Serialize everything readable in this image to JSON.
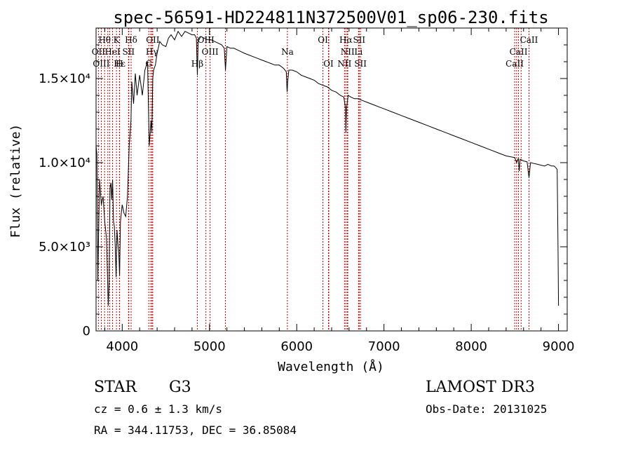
{
  "chart_data": {
    "type": "line",
    "title": "spec-56591-HD224811N372500V01_sp06-230.fits",
    "xlabel": "Wavelength (Å)",
    "ylabel": "Flux (relative)",
    "xlim": [
      3700,
      9100
    ],
    "ylim": [
      0,
      18000
    ],
    "x_ticks": [
      {
        "value": 4000,
        "label": "4000"
      },
      {
        "value": 5000,
        "label": "5000"
      },
      {
        "value": 6000,
        "label": "6000"
      },
      {
        "value": 7000,
        "label": "7000"
      },
      {
        "value": 8000,
        "label": "8000"
      },
      {
        "value": 9000,
        "label": "9000"
      }
    ],
    "y_ticks": [
      {
        "value": 0,
        "label": "0"
      },
      {
        "value": 5000,
        "label": "5.0×10³"
      },
      {
        "value": 10000,
        "label": "1.0×10⁴"
      },
      {
        "value": 15000,
        "label": "1.5×10⁴"
      }
    ],
    "series": [
      {
        "name": "spectrum",
        "x": [
          3700,
          3710,
          3720,
          3730,
          3740,
          3760,
          3780,
          3800,
          3820,
          3840,
          3850,
          3860,
          3870,
          3880,
          3890,
          3900,
          3910,
          3920,
          3930,
          3940,
          3950,
          3960,
          3970,
          3980,
          4000,
          4020,
          4040,
          4060,
          4080,
          4100,
          4110,
          4130,
          4150,
          4170,
          4200,
          4230,
          4260,
          4290,
          4310,
          4330,
          4340,
          4350,
          4360,
          4380,
          4400,
          4430,
          4460,
          4500,
          4530,
          4560,
          4600,
          4640,
          4680,
          4720,
          4760,
          4800,
          4830,
          4850,
          4861,
          4870,
          4900,
          4940,
          4980,
          5020,
          5060,
          5100,
          5140,
          5170,
          5183,
          5200,
          5240,
          5280,
          5320,
          5360,
          5400,
          5450,
          5500,
          5550,
          5600,
          5650,
          5700,
          5750,
          5800,
          5850,
          5880,
          5890,
          5896,
          5910,
          5950,
          6000,
          6050,
          6100,
          6150,
          6200,
          6250,
          6300,
          6350,
          6400,
          6450,
          6500,
          6540,
          6560,
          6563,
          6570,
          6590,
          6620,
          6660,
          6700,
          6750,
          6800,
          6850,
          6900,
          6950,
          7000,
          7100,
          7200,
          7300,
          7400,
          7500,
          7600,
          7700,
          7800,
          7900,
          8000,
          8100,
          8200,
          8300,
          8400,
          8450,
          8500,
          8520,
          8540,
          8550,
          8560,
          8600,
          8640,
          8662,
          8680,
          8720,
          8760,
          8800,
          8840,
          8880,
          8920,
          8950,
          8970,
          8985,
          8995,
          9000
        ],
        "y": [
          11000,
          10500,
          3000,
          6000,
          9000,
          7500,
          8000,
          6500,
          5500,
          1500,
          3000,
          8500,
          8800,
          7800,
          9000,
          6500,
          6200,
          5000,
          3200,
          6000,
          5200,
          4700,
          3300,
          6500,
          7500,
          7000,
          6800,
          8000,
          11000,
          12500,
          14800,
          13500,
          15300,
          14000,
          15200,
          14000,
          15500,
          16000,
          11000,
          12500,
          11800,
          15000,
          15500,
          15800,
          16500,
          17200,
          17000,
          16900,
          17400,
          17600,
          17300,
          17800,
          17500,
          17800,
          17700,
          17600,
          17600,
          17400,
          15200,
          17200,
          17500,
          17400,
          17300,
          17300,
          17200,
          17100,
          17000,
          16800,
          15500,
          16900,
          16800,
          16800,
          16700,
          16600,
          16500,
          16400,
          16300,
          16200,
          16100,
          16000,
          15900,
          15800,
          15800,
          15600,
          15400,
          14200,
          14800,
          15500,
          15500,
          15400,
          15200,
          15100,
          15000,
          14900,
          14700,
          14600,
          14500,
          14300,
          14200,
          14000,
          13900,
          13200,
          11800,
          13200,
          14000,
          13900,
          13800,
          13800,
          13700,
          13600,
          13500,
          13400,
          13300,
          13200,
          13000,
          12800,
          12600,
          12400,
          12200,
          12000,
          11800,
          11600,
          11400,
          11200,
          11000,
          10800,
          10600,
          10400,
          10350,
          10300,
          10000,
          10250,
          9500,
          10200,
          10100,
          10050,
          9100,
          10000,
          9950,
          9900,
          9850,
          9800,
          9900,
          9800,
          9800,
          9700,
          9600,
          5000,
          1500
        ]
      }
    ],
    "line_markers": [
      {
        "name": "Hθ",
        "wavelength": 3798,
        "row": 1
      },
      {
        "name": "K",
        "wavelength": 3934,
        "row": 1
      },
      {
        "name": "Hδ",
        "wavelength": 4102,
        "row": 1
      },
      {
        "name": "OII",
        "wavelength": 4350,
        "row": 1
      },
      {
        "name": "OIII",
        "wavelength": 4959,
        "row": 1
      },
      {
        "name": "Na",
        "wavelength": 5893,
        "row": 2
      },
      {
        "name": "OI",
        "wavelength": 6300,
        "row": 1
      },
      {
        "name": "Hα",
        "wavelength": 6563,
        "row": 1
      },
      {
        "name": "SII",
        "wavelength": 6716,
        "row": 1
      },
      {
        "name": "CaII",
        "wavelength": 8662,
        "row": 1
      },
      {
        "name": "OII",
        "wavelength": 3727,
        "row": 2
      },
      {
        "name": "HeI",
        "wavelength": 3889,
        "row": 2
      },
      {
        "name": "SII",
        "wavelength": 4072,
        "row": 2
      },
      {
        "name": "Hγ",
        "wavelength": 4340,
        "row": 2
      },
      {
        "name": "OIII",
        "wavelength": 5007,
        "row": 2
      },
      {
        "name": "NII",
        "wavelength": 6583,
        "row": 2
      },
      {
        "name": "Li",
        "wavelength": 6708,
        "row": 2
      },
      {
        "name": "CaII",
        "wavelength": 8542,
        "row": 2
      },
      {
        "name": "OIII",
        "wavelength": 3760,
        "row": 3
      },
      {
        "name": "Hε",
        "wavelength": 3970,
        "row": 3
      },
      {
        "name": "H",
        "wavelength": 3968,
        "row": 3
      },
      {
        "name": "G",
        "wavelength": 4304,
        "row": 3
      },
      {
        "name": "Hβ",
        "wavelength": 4861,
        "row": 3
      },
      {
        "name": "OI",
        "wavelength": 6364,
        "row": 3
      },
      {
        "name": "NII",
        "wavelength": 6548,
        "row": 3
      },
      {
        "name": "SII",
        "wavelength": 6731,
        "row": 3
      },
      {
        "name": "CaII",
        "wavelength": 8498,
        "row": 3
      }
    ],
    "extra_marker_lines": [
      3835,
      3856,
      4076,
      4326,
      5183,
      6368,
      6580,
      6585,
      8520,
      8572
    ]
  },
  "info": {
    "object_type": "STAR",
    "subclass": "G3",
    "survey": "LAMOST DR3",
    "redshift": "cz = 0.6 ± 1.3 km/s",
    "obs_date": "Obs-Date: 20131025",
    "coords": "RA = 344.11753, DEC =  36.85084"
  },
  "colors": {
    "spectrum": "#000000",
    "marker": "#cc0000",
    "axis": "#000000"
  }
}
